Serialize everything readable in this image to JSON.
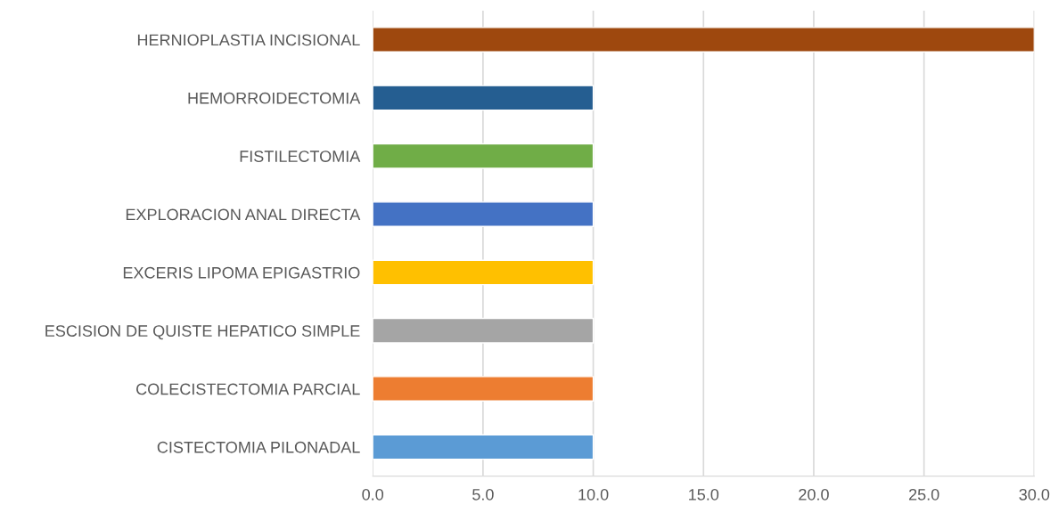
{
  "chart_data": {
    "type": "bar",
    "orientation": "horizontal",
    "categories": [
      "HERNIOPLASTIA INCISIONAL",
      "HEMORROIDECTOMIA",
      "FISTILECTOMIA",
      "EXPLORACION ANAL DIRECTA",
      "EXCERIS LIPOMA EPIGASTRIO",
      "ESCISION DE QUISTE HEPATICO SIMPLE",
      "COLECISTECTOMIA PARCIAL",
      "CISTECTOMIA PILONADAL"
    ],
    "values": [
      30,
      10,
      10,
      10,
      10,
      10,
      10,
      10
    ],
    "colors": [
      "#9e480e",
      "#255e91",
      "#70ad47",
      "#4472c4",
      "#ffc000",
      "#a5a5a5",
      "#ed7d31",
      "#5b9bd5"
    ],
    "xlim": [
      0,
      30
    ],
    "xticks": [
      {
        "value": 0,
        "label": "0.0"
      },
      {
        "value": 5,
        "label": "5.0"
      },
      {
        "value": 10,
        "label": "10.0"
      },
      {
        "value": 15,
        "label": "15.0"
      },
      {
        "value": 20,
        "label": "20.0"
      },
      {
        "value": 25,
        "label": "25.0"
      },
      {
        "value": 30,
        "label": "30.0"
      }
    ],
    "grid": "x",
    "legend": false
  }
}
